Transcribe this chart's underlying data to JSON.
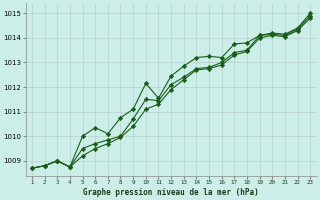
{
  "x": [
    1,
    2,
    3,
    4,
    5,
    6,
    7,
    8,
    9,
    10,
    11,
    12,
    13,
    14,
    15,
    16,
    17,
    18,
    19,
    20,
    21,
    22,
    23
  ],
  "line1": [
    1008.7,
    1008.8,
    1009.0,
    1008.75,
    1009.5,
    1009.7,
    1009.85,
    1010.0,
    1010.7,
    1011.5,
    1011.45,
    1012.1,
    1012.4,
    1012.75,
    1012.8,
    1013.0,
    1013.4,
    1013.5,
    1014.1,
    1014.15,
    1014.1,
    1014.35,
    1014.9
  ],
  "line2": [
    1008.7,
    1008.8,
    1009.0,
    1008.75,
    1010.0,
    1010.35,
    1010.1,
    1010.75,
    1011.1,
    1012.15,
    1011.55,
    1012.45,
    1012.85,
    1013.2,
    1013.25,
    1013.2,
    1013.75,
    1013.8,
    1014.1,
    1014.2,
    1014.15,
    1014.4,
    1015.0
  ],
  "line3": [
    1008.7,
    1008.8,
    1009.0,
    1008.75,
    1009.2,
    1009.5,
    1009.7,
    1009.95,
    1010.4,
    1011.1,
    1011.3,
    1011.9,
    1012.3,
    1012.7,
    1012.75,
    1012.9,
    1013.3,
    1013.45,
    1014.0,
    1014.1,
    1014.05,
    1014.3,
    1014.8
  ],
  "bg_color": "#cceee8",
  "grid_color_major": "#b8d0cc",
  "grid_color_minor": "#d8eeea",
  "line_color": "#1a5c1a",
  "title": "Graphe pression niveau de la mer (hPa)",
  "ylim": [
    1008.4,
    1015.4
  ],
  "yticks": [
    1009,
    1010,
    1011,
    1012,
    1013,
    1014,
    1015
  ],
  "xlim": [
    0.5,
    23.5
  ],
  "xtick_labels": [
    "1",
    "2",
    "3",
    "4",
    "5",
    "6",
    "7",
    "8",
    "9",
    "10",
    "11",
    "12",
    "13",
    "14",
    "15",
    "16",
    "17",
    "18",
    "19",
    "20",
    "21",
    "22",
    "23"
  ]
}
